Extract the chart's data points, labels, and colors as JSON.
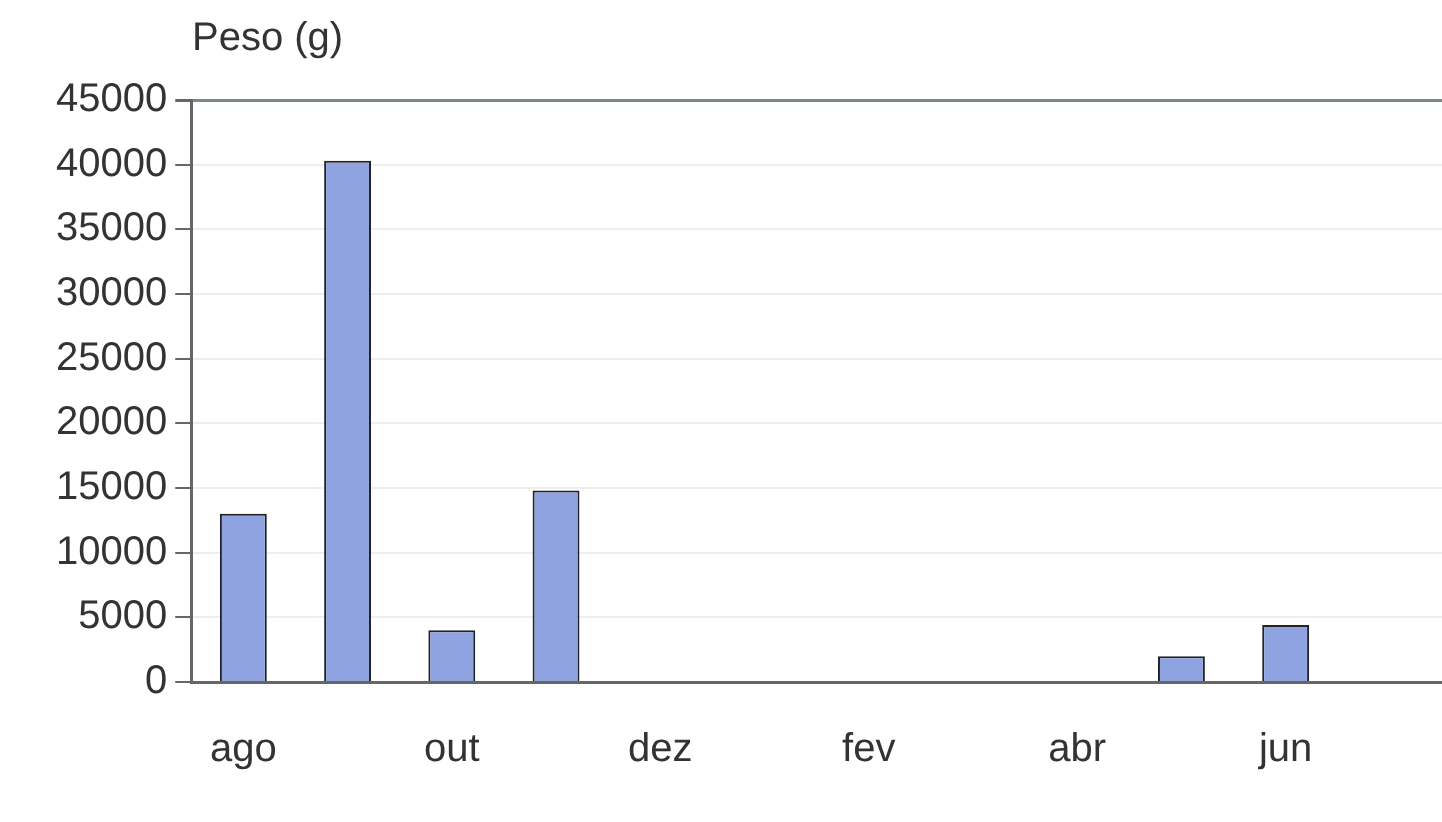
{
  "chart_data": {
    "type": "bar",
    "ylabel": "Peso (g)",
    "categories": [
      "ago",
      null,
      "out",
      null,
      "dez",
      null,
      "fev",
      null,
      "abr",
      null,
      "jun",
      null
    ],
    "values": [
      13000,
      40300,
      4000,
      14800,
      0,
      0,
      0,
      0,
      0,
      2000,
      4400,
      0
    ],
    "color": "#8fa3e0",
    "ylim": [
      0,
      45000
    ],
    "yticks": [
      0,
      5000,
      10000,
      15000,
      20000,
      25000,
      30000,
      35000,
      40000,
      45000
    ],
    "grid": "y"
  }
}
